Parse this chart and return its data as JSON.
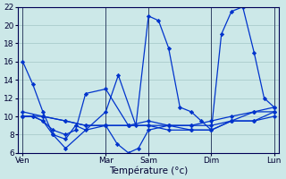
{
  "bg_color": "#cce8e8",
  "grid_color": "#aacccc",
  "line_color": "#0033cc",
  "xlabel": "Température (°c)",
  "ylim": [
    6,
    22
  ],
  "yticks": [
    6,
    8,
    10,
    12,
    14,
    16,
    18,
    20,
    22
  ],
  "day_labels": [
    "Ven",
    "Mar",
    "Sam",
    "Dim",
    "Lun"
  ],
  "day_positions": [
    0,
    0.33,
    0.5,
    0.75,
    1.0
  ],
  "series": [
    {
      "x": [
        0,
        0.04,
        0.08,
        0.12,
        0.17,
        0.33,
        0.38,
        0.45,
        0.5,
        0.54,
        0.58,
        0.625,
        0.67,
        0.71,
        0.75,
        0.79,
        0.83,
        0.875,
        0.92,
        0.96,
        1.0
      ],
      "y": [
        16,
        13.5,
        10.5,
        8,
        6.5,
        10.5,
        14.5,
        9,
        21,
        20.5,
        17.5,
        11,
        10.5,
        9.5,
        8.5,
        19,
        21.5,
        22,
        17,
        12,
        11
      ]
    },
    {
      "x": [
        0,
        0.08,
        0.17,
        0.25,
        0.33,
        0.42,
        0.5,
        0.58,
        0.67,
        0.75,
        0.83,
        0.92,
        1.0
      ],
      "y": [
        10.5,
        10,
        9.5,
        9,
        9,
        9,
        9.5,
        9,
        9,
        9,
        9.5,
        10.5,
        11
      ]
    },
    {
      "x": [
        0,
        0.08,
        0.17,
        0.25,
        0.33,
        0.42,
        0.5,
        0.58,
        0.67,
        0.75,
        0.83,
        0.92,
        1.0
      ],
      "y": [
        10,
        10,
        9.5,
        9,
        9,
        9,
        9,
        9,
        9,
        9.5,
        10,
        10.5,
        10.5
      ]
    },
    {
      "x": [
        0,
        0.04,
        0.08,
        0.12,
        0.17,
        0.21,
        0.25,
        0.33,
        0.42,
        0.5,
        0.58,
        0.67,
        0.75,
        0.83,
        0.92,
        1.0
      ],
      "y": [
        10,
        10,
        9.5,
        8.5,
        8,
        8.5,
        12.5,
        13,
        9,
        9,
        8.5,
        8.5,
        8.5,
        9.5,
        9.5,
        10
      ]
    },
    {
      "x": [
        0,
        0.04,
        0.08,
        0.12,
        0.17,
        0.21,
        0.25,
        0.33,
        0.375,
        0.42,
        0.46,
        0.5,
        0.58,
        0.67,
        0.75,
        0.83,
        0.92,
        1.0
      ],
      "y": [
        10,
        10,
        9.5,
        8,
        7.5,
        9,
        8.5,
        9,
        7,
        6,
        6.5,
        8.5,
        9,
        8.5,
        8.5,
        9.5,
        9.5,
        10.5
      ]
    }
  ]
}
